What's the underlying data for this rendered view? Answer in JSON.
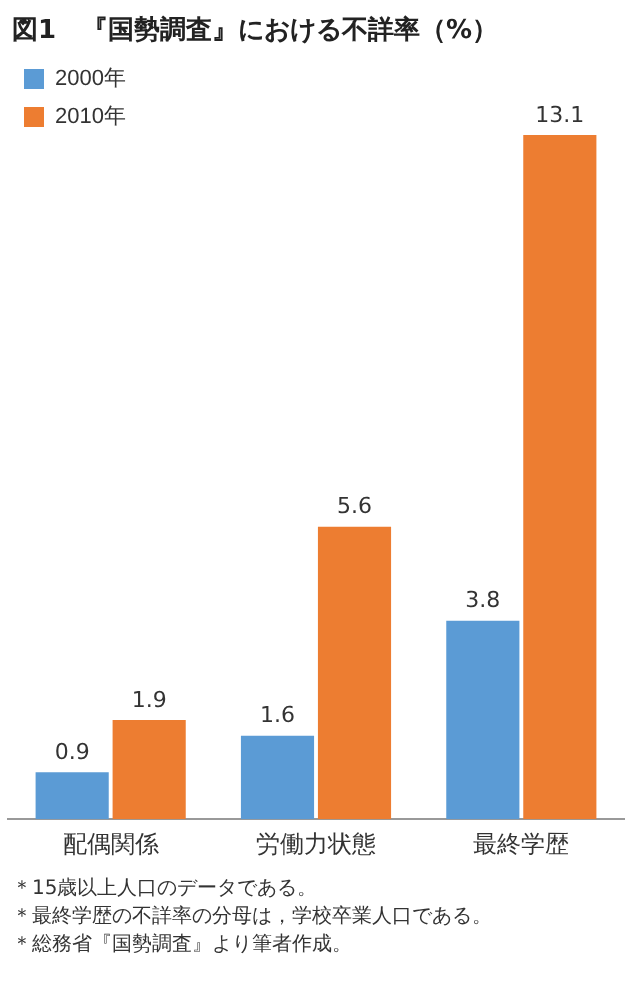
{
  "chart_data": {
    "type": "bar",
    "title": "図1　『国勢調査』における不詳率（%）",
    "categories": [
      "配偶関係",
      "労働力状態",
      "最終学歴"
    ],
    "series": [
      {
        "name": "2000年",
        "color": "#5b9bd5",
        "values": [
          0.9,
          1.6,
          3.8
        ]
      },
      {
        "name": "2010年",
        "color": "#ed7d31",
        "values": [
          1.9,
          5.6,
          13.1
        ]
      }
    ],
    "data_labels": true,
    "grid": false,
    "legend": "top left",
    "tick_labels": "x",
    "annotations": [
      "＊15歳以上人口のデータである。",
      "＊最終学歴の不詳率の分母は，学校卒業人口である。",
      "＊総務省『国勢調査』より筆者作成。"
    ]
  }
}
